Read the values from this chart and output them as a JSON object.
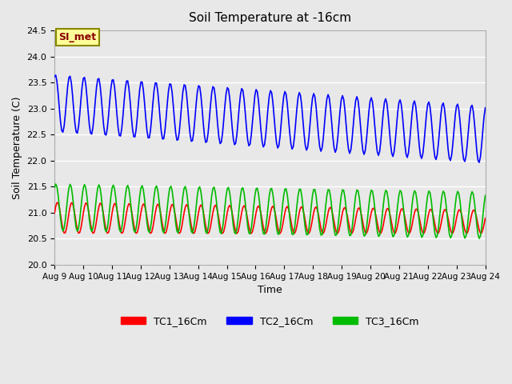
{
  "title": "Soil Temperature at -16cm",
  "xlabel": "Time",
  "ylabel": "Soil Temperature (C)",
  "ylim": [
    20.0,
    24.5
  ],
  "yticks": [
    20.0,
    20.5,
    21.0,
    21.5,
    22.0,
    22.5,
    23.0,
    23.5,
    24.0,
    24.5
  ],
  "xlim_days": [
    0,
    15
  ],
  "x_tick_labels": [
    "Aug 9",
    "Aug 10",
    "Aug 11",
    "Aug 12",
    "Aug 13",
    "Aug 14",
    "Aug 15",
    "Aug 16",
    "Aug 17",
    "Aug 18",
    "Aug 19",
    "Aug 20",
    "Aug 21",
    "Aug 22",
    "Aug 23",
    "Aug 24"
  ],
  "colors": {
    "TC1": "#ff0000",
    "TC2": "#0000ff",
    "TC3": "#00bb00"
  },
  "legend_labels": [
    "TC1_16Cm",
    "TC2_16Cm",
    "TC3_16Cm"
  ],
  "annotation_text": "SI_met",
  "annotation_bg": "#ffff99",
  "annotation_border": "#888800",
  "bg_color": "#e8e8e8",
  "plot_bg_color": "#e8e8e8",
  "grid_color": "#ffffff",
  "TC1_base": 20.9,
  "TC1_amp": 0.3,
  "TC2_base": 23.1,
  "TC2_amp": 0.55,
  "TC3_base": 21.1,
  "TC3_amp": 0.45,
  "period_hours": 12,
  "n_points": 360,
  "duration_days": 15
}
